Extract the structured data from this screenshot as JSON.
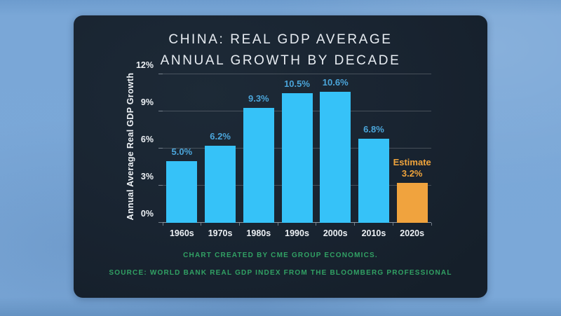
{
  "title": {
    "line1": "CHINA: REAL GDP AVERAGE",
    "line2": "ANNUAL GROWTH BY DECADE"
  },
  "footer": {
    "line1": "CHART CREATED BY CME GROUP ECONOMICS.",
    "line2": "SOURCE: WORLD BANK REAL GDP INDEX FROM THE BLOOMBERG PROFESSIONAL"
  },
  "colors": {
    "page_background": "#7aa7d7",
    "card_background": "#192431",
    "bar": "#36c2f8",
    "estimate_bar": "#f0a33e",
    "value_label": "#4ba5da",
    "estimate_label": "#f0a43c",
    "footer_green": "#31a164",
    "axis_text": "#edf1f5",
    "gridline": "rgba(255,255,255,0.20)"
  },
  "chart_data": {
    "type": "bar",
    "title": "CHINA: REAL GDP AVERAGE ANNUAL GROWTH BY DECADE",
    "xlabel": "",
    "ylabel": "Annual Average Real GDP Growth",
    "categories": [
      "1960s",
      "1970s",
      "1980s",
      "1990s",
      "2000s",
      "2010s",
      "2020s"
    ],
    "values": [
      5.0,
      6.2,
      9.3,
      10.5,
      10.6,
      6.8,
      3.2
    ],
    "bar_labels": [
      "5.0%",
      "6.2%",
      "9.3%",
      "10.5%",
      "10.6%",
      "6.8%",
      "3.2%"
    ],
    "estimate_index": 6,
    "estimate_text": "Estimate",
    "ylim": [
      0,
      12
    ],
    "yticks": [
      {
        "value": 0,
        "label": "0%"
      },
      {
        "value": 3,
        "label": "3%"
      },
      {
        "value": 6,
        "label": "6%"
      },
      {
        "value": 9,
        "label": "9%"
      },
      {
        "value": 12,
        "label": "12%"
      }
    ],
    "grid": true,
    "legend": false
  }
}
